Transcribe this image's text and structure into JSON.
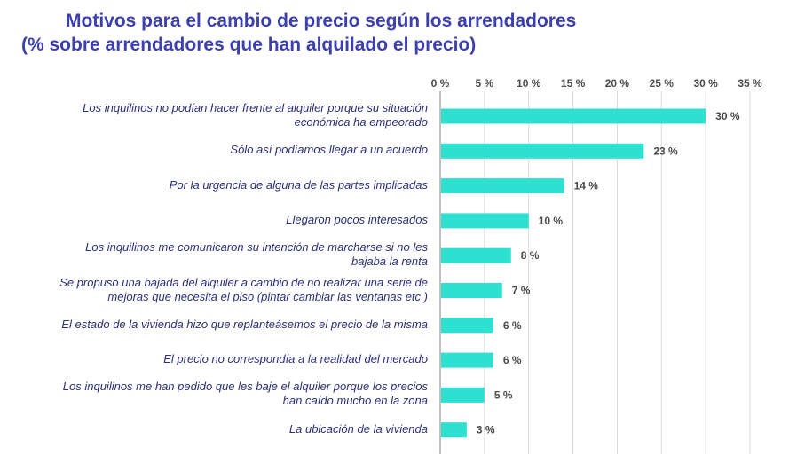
{
  "title": {
    "line1": "Motivos para el cambio de precio según los arrendadores",
    "line2": "(% sobre arrendadores que han alquilado el precio)"
  },
  "colors": {
    "bar": "#2ee0cf",
    "title": "#3b3fb0",
    "label": "#2b2f7a",
    "grid": "#d9d9d9",
    "axis": "#7f7f7f"
  },
  "chart_data": {
    "type": "bar",
    "orientation": "horizontal",
    "title": "Motivos para el cambio de precio según los arrendadores (% sobre arrendadores que han alquilado el precio)",
    "xlabel": "",
    "ylabel": "",
    "xlim": [
      0,
      35
    ],
    "x_ticks": [
      0,
      5,
      10,
      15,
      20,
      25,
      30,
      35
    ],
    "x_tick_labels": [
      "0 %",
      "5 %",
      "10 %",
      "15 %",
      "20 %",
      "25 %",
      "30 %",
      "35 %"
    ],
    "axis_position": "top",
    "grid": true,
    "legend": false,
    "categories": [
      "Los inquilinos no podían hacer frente al alquiler porque su situación económica ha empeorado",
      "Sólo así podíamos llegar a un acuerdo",
      "Por la urgencia de alguna de las partes implicadas",
      "Llegaron pocos interesados",
      "Los inquilinos me comunicaron su intención de marcharse si no les bajaba la renta",
      "Se propuso una bajada del alquiler a cambio de no realizar una serie de mejoras que necesita el piso (pintar cambiar las ventanas etc )",
      "El estado de la vivienda hizo que replanteásemos el precio de la misma",
      "El precio no correspondía a la realidad del mercado",
      "Los inquilinos me han pedido que les baje el alquiler porque los precios han caído mucho en la zona",
      "La ubicación de la vivienda"
    ],
    "category_lines": [
      [
        "Los inquilinos no podían hacer frente al alquiler porque su situación",
        "económica ha empeorado"
      ],
      [
        "Sólo así podíamos llegar a un acuerdo"
      ],
      [
        "Por la urgencia de alguna de las partes implicadas"
      ],
      [
        "Llegaron pocos interesados"
      ],
      [
        "Los inquilinos me comunicaron su intención de marcharse si no les",
        "bajaba la renta"
      ],
      [
        "Se propuso una bajada del alquiler a cambio de no realizar una serie de",
        "mejoras que necesita el piso (pintar cambiar las ventanas etc )"
      ],
      [
        "El estado de la vivienda hizo que replanteásemos el precio de la misma"
      ],
      [
        "El precio no correspondía a la realidad del mercado"
      ],
      [
        "Los inquilinos me han pedido que les baje el alquiler porque los precios",
        "han caído mucho en la zona"
      ],
      [
        "La ubicación de la vivienda"
      ]
    ],
    "values": [
      30,
      23,
      14,
      10,
      8,
      7,
      6,
      6,
      5,
      3
    ],
    "data_labels": [
      "30 %",
      "23 %",
      "14 %",
      "10 %",
      "8 %",
      "7 %",
      "6 %",
      "6 %",
      "5 %",
      "3 %"
    ]
  }
}
